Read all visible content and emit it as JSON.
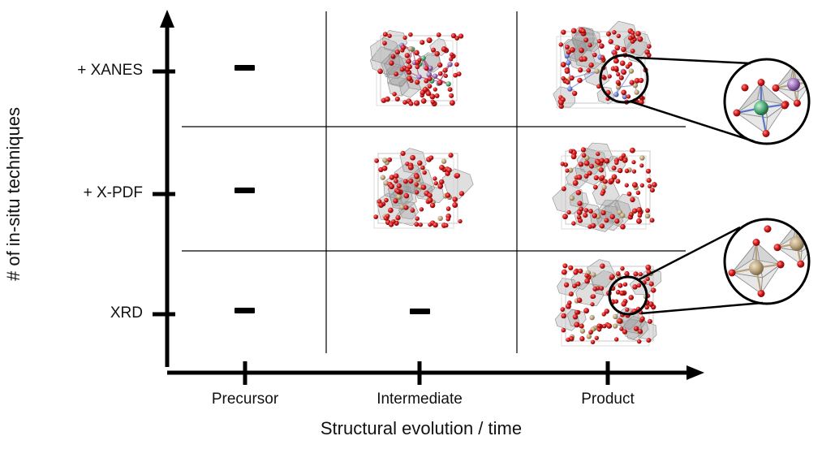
{
  "axes": {
    "y_title": "# of in-situ techniques",
    "x_title": "Structural evolution / time"
  },
  "rows": [
    {
      "label": "+ XANES"
    },
    {
      "label": "+ X-PDF"
    },
    {
      "label": "XRD"
    }
  ],
  "columns": [
    {
      "label": "Precursor"
    },
    {
      "label": "Intermediate"
    },
    {
      "label": "Product"
    }
  ],
  "cells": {
    "xanes": {
      "precursor": "none",
      "intermediate": "structure",
      "product": "structure"
    },
    "xpdf": {
      "precursor": "none",
      "intermediate": "structure",
      "product": "structure"
    },
    "xrd": {
      "precursor": "none",
      "intermediate": "none",
      "product": "structure"
    }
  },
  "colors": {
    "oxygen": "#d21818",
    "metal_tan": "#b9a37c",
    "metal_blue": "#6f7fd0",
    "metal_green": "#4caa76",
    "metal_purple": "#9b6fb8",
    "polyhedra": "#9a9a9a",
    "line": "#000000"
  }
}
